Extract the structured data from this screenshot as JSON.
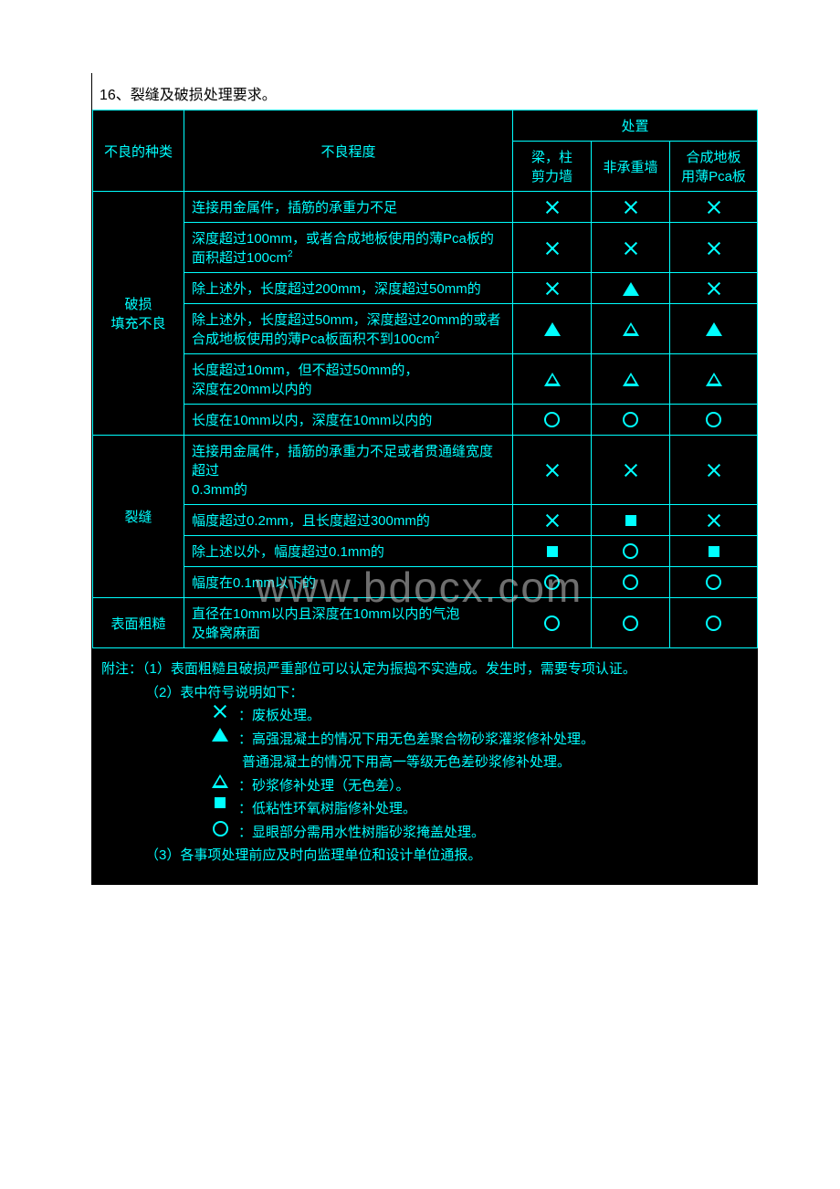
{
  "caption": "16、裂缝及破损处理要求。",
  "watermark": "www.bdocx.com",
  "header": {
    "type": "不良的种类",
    "degree": "不良程度",
    "disposal": "处置",
    "col1_a": "梁，柱",
    "col1_b": "剪力墙",
    "col2": "非承重墙",
    "col3_a": "合成地板",
    "col3_b": "用薄Pca板"
  },
  "groups": [
    {
      "label_a": "破损",
      "label_b": "填充不良",
      "rows": [
        {
          "desc": "连接用金属件，插筋的承重力不足",
          "syms": [
            "x",
            "x",
            "x"
          ]
        },
        {
          "desc_html": "深度超过100mm，或者合成地板使用的薄Pca板的<br>面积超过100cm<span class='sup'>2</span>",
          "syms": [
            "x",
            "x",
            "x"
          ]
        },
        {
          "desc": "除上述外，长度超过200mm，深度超过50mm的",
          "syms": [
            "x",
            "tri-f",
            "x"
          ]
        },
        {
          "desc_html": "除上述外，长度超过50mm，深度超过20mm的或者<br>合成地板使用的薄Pca板面积不到100cm<span class='sup'>2</span>",
          "syms": [
            "tri-f",
            "tri-o",
            "tri-f"
          ]
        },
        {
          "desc_html": "长度超过10mm，但不超过50mm的，<br>深度在20mm以内的",
          "syms": [
            "tri-o",
            "tri-o",
            "tri-o"
          ]
        },
        {
          "desc": "长度在10mm以内，深度在10mm以内的",
          "syms": [
            "circ",
            "circ",
            "circ"
          ]
        }
      ]
    },
    {
      "label_a": "裂缝",
      "rows": [
        {
          "desc_html": "连接用金属件，插筋的承重力不足或者贯通缝宽度超过<br>0.3mm的",
          "syms": [
            "x",
            "x",
            "x"
          ]
        },
        {
          "desc": "幅度超过0.2mm，且长度超过300mm的",
          "syms": [
            "x",
            "sq",
            "x"
          ],
          "tight": true
        },
        {
          "desc": "除上述以外，幅度超过0.1mm的",
          "syms": [
            "sq",
            "circ",
            "sq"
          ],
          "tight": true
        },
        {
          "desc": "幅度在0.1mm以下的",
          "syms": [
            "circ",
            "circ",
            "circ"
          ],
          "tight": true
        }
      ]
    },
    {
      "label_a": "表面粗糙",
      "rows": [
        {
          "desc_html": "直径在10mm以内且深度在10mm以内的气泡<br>及蜂窝麻面",
          "syms": [
            "circ",
            "circ",
            "circ"
          ]
        }
      ]
    }
  ],
  "notes": {
    "line1": "附注：（1）表面粗糙且破损严重部位可以认定为振捣不实造成。发生时，需要专项认证。",
    "line2": "（2）表中符号说明如下：",
    "legend": [
      {
        "sym": "x",
        "text": "：废板处理。"
      },
      {
        "sym": "tri-f",
        "text": "：高强混凝土的情况下用无色差聚合物砂浆灌浆修补处理。",
        "text2": "普通混凝土的情况下用高一等级无色差砂浆修补处理。"
      },
      {
        "sym": "tri-o",
        "text": "：砂浆修补处理（无色差）。"
      },
      {
        "sym": "sq",
        "text": "：低粘性环氧树脂修补处理。"
      },
      {
        "sym": "circ",
        "text": "：显眼部分需用水性树脂砂浆掩盖处理。"
      }
    ],
    "line3": "（3）各事项处理前应及时向监理单位和设计单位通报。"
  }
}
